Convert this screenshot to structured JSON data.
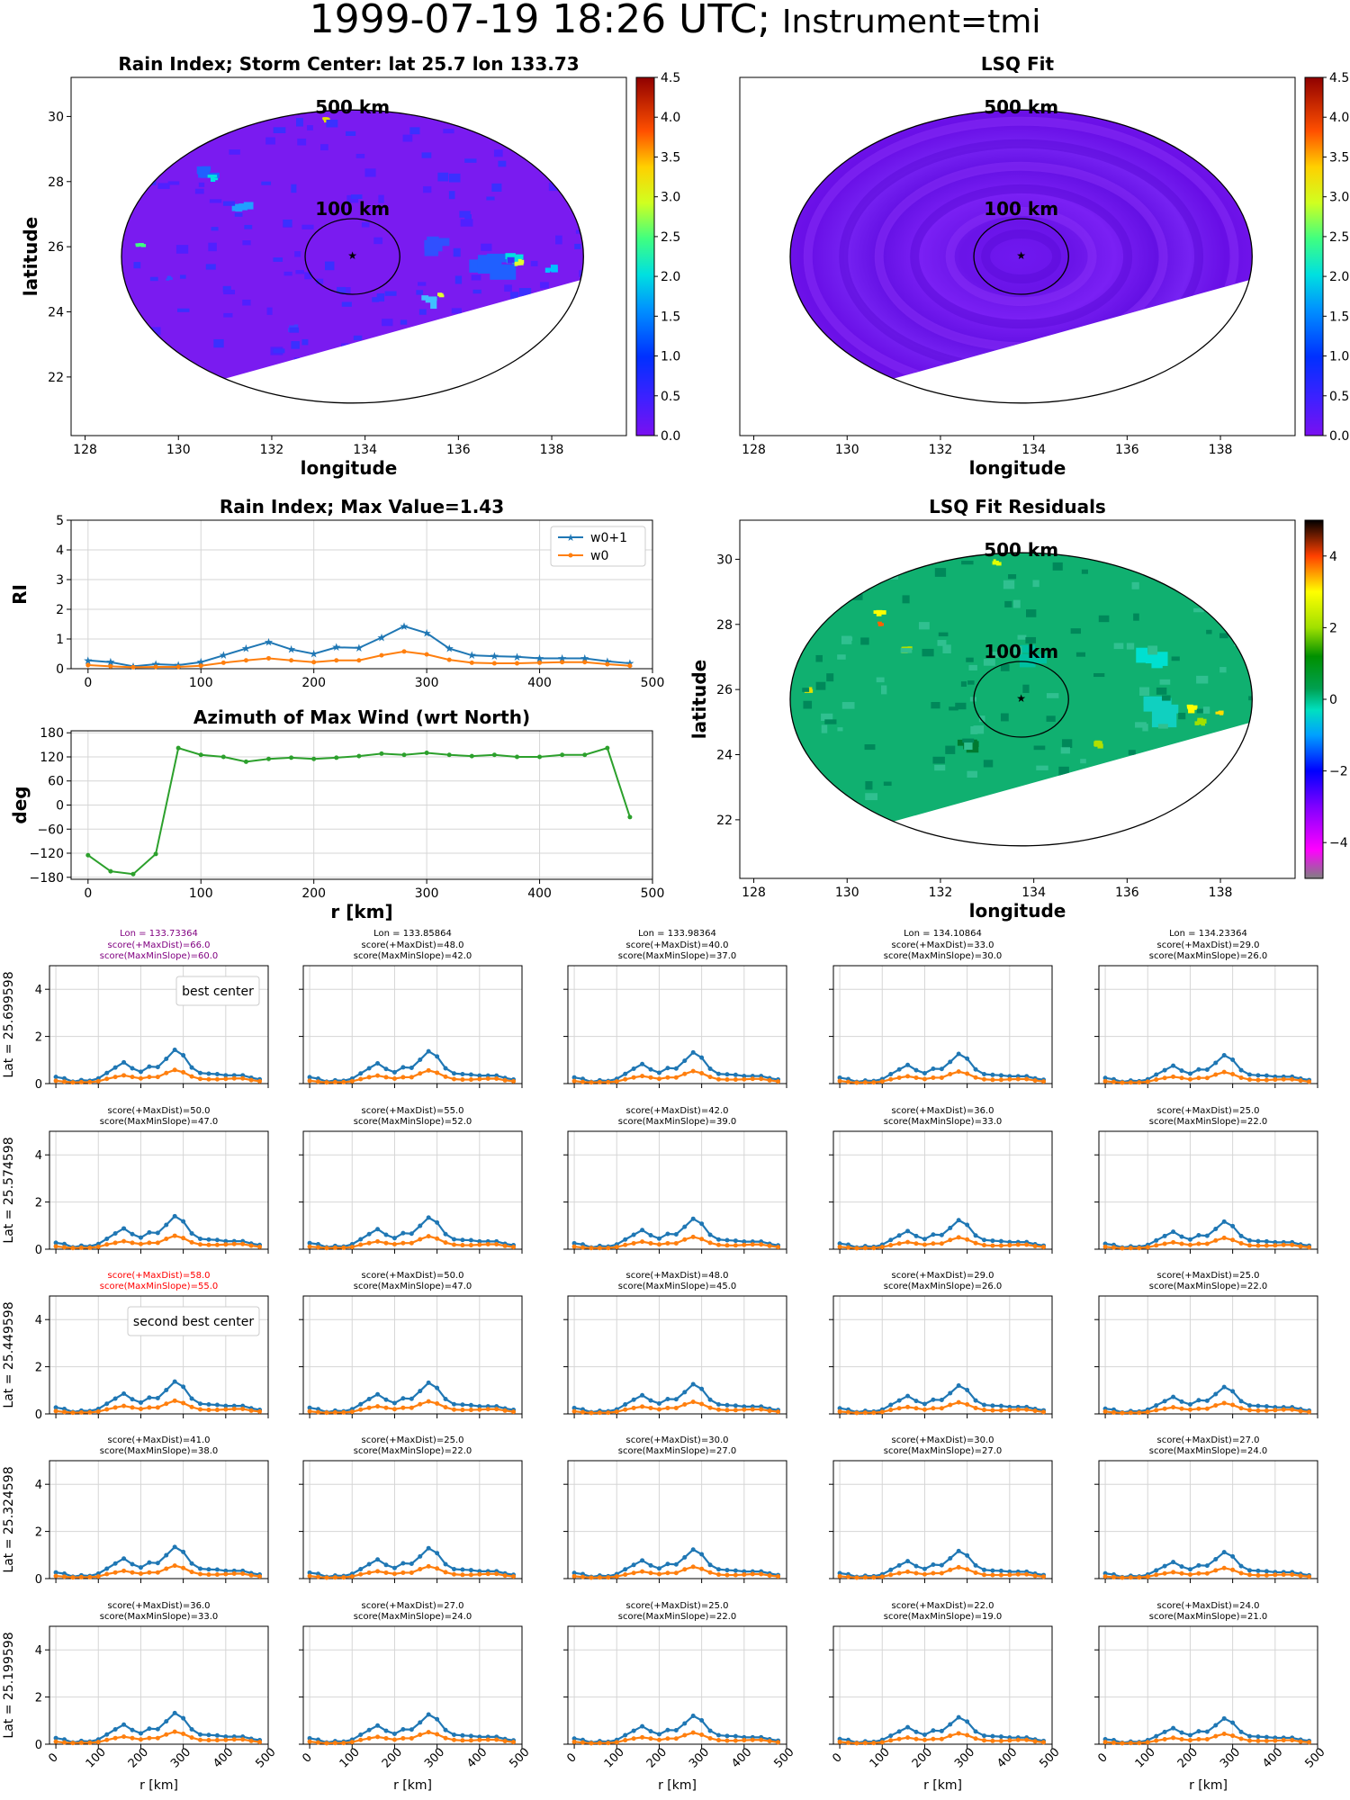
{
  "figure": {
    "title_date": "1999-07-19 18:26 UTC;",
    "title_instrument": "Instrument=tmi"
  },
  "colors": {
    "w0p1": "#1f77b4",
    "w0": "#ff7f0e",
    "azimuth": "#2ca02c",
    "best_title": "#800080",
    "second_title": "#ff0000",
    "rain_bg": "#7a1bf0",
    "resid_bg": "#10b070"
  },
  "chart_data": [
    {
      "id": "rain-index-map",
      "type": "heatmap",
      "title": "Rain Index; Storm Center: lat 25.7 lon 133.73",
      "xlabel": "longitude",
      "ylabel": "latitude",
      "xlim": [
        127.7,
        139.6
      ],
      "ylim": [
        20.2,
        31.2
      ],
      "xticks": [
        128,
        130,
        132,
        134,
        136,
        138
      ],
      "yticks": [
        22,
        24,
        26,
        28,
        30
      ],
      "center": {
        "lon": 133.73,
        "lat": 25.7
      },
      "ring_labels": [
        "500 km",
        "100 km"
      ],
      "colorbar": {
        "min": 0.0,
        "max": 4.5,
        "ticks": [
          "0.0",
          "0.5",
          "1.0",
          "1.5",
          "2.0",
          "2.5",
          "3.0",
          "3.5",
          "4.0",
          "4.5"
        ]
      }
    },
    {
      "id": "lsq-fit-map",
      "type": "heatmap",
      "title": "LSQ Fit",
      "xlabel": "longitude",
      "ylabel": "",
      "xlim": [
        127.7,
        139.6
      ],
      "ylim": [
        20.2,
        31.2
      ],
      "xticks": [
        128,
        130,
        132,
        134,
        136,
        138
      ],
      "yticks": [],
      "center": {
        "lon": 133.73,
        "lat": 25.7
      },
      "ring_labels": [
        "500 km",
        "100 km"
      ],
      "colorbar": {
        "min": 0.0,
        "max": 4.5,
        "ticks": [
          "0.0",
          "0.5",
          "1.0",
          "1.5",
          "2.0",
          "2.5",
          "3.0",
          "3.5",
          "4.0",
          "4.5"
        ]
      }
    },
    {
      "id": "rain-index-line",
      "type": "line",
      "title": "Rain Index; Max Value=1.43",
      "xlabel": "",
      "ylabel": "RI",
      "xlim": [
        -15,
        500
      ],
      "ylim": [
        0,
        5
      ],
      "xticks": [
        0,
        100,
        200,
        300,
        400,
        500
      ],
      "yticks": [
        0,
        1,
        2,
        3,
        4,
        5
      ],
      "legend": "top-right",
      "x": [
        0,
        20,
        40,
        60,
        80,
        100,
        120,
        140,
        160,
        180,
        200,
        220,
        240,
        260,
        280,
        300,
        320,
        340,
        360,
        380,
        400,
        420,
        440,
        460,
        480
      ],
      "series": [
        {
          "name": "w0+1",
          "values": [
            0.28,
            0.22,
            0.08,
            0.15,
            0.12,
            0.22,
            0.45,
            0.68,
            0.9,
            0.65,
            0.5,
            0.72,
            0.7,
            1.05,
            1.43,
            1.2,
            0.68,
            0.45,
            0.42,
            0.4,
            0.35,
            0.35,
            0.35,
            0.25,
            0.18
          ]
        },
        {
          "name": "w0",
          "values": [
            0.12,
            0.08,
            0.05,
            0.06,
            0.06,
            0.1,
            0.2,
            0.28,
            0.35,
            0.28,
            0.22,
            0.28,
            0.28,
            0.45,
            0.58,
            0.48,
            0.3,
            0.2,
            0.18,
            0.18,
            0.2,
            0.22,
            0.22,
            0.15,
            0.1
          ]
        }
      ]
    },
    {
      "id": "lsq-residuals-map",
      "type": "heatmap",
      "title": "LSQ Fit Residuals",
      "xlabel": "longitude",
      "ylabel": "latitude",
      "xlim": [
        127.7,
        139.6
      ],
      "ylim": [
        20.2,
        31.2
      ],
      "xticks": [
        128,
        130,
        132,
        134,
        136,
        138
      ],
      "yticks": [
        22,
        24,
        26,
        28,
        30
      ],
      "center": {
        "lon": 133.73,
        "lat": 25.7
      },
      "ring_labels": [
        "500 km",
        "100 km"
      ],
      "colorbar": {
        "min": -5,
        "max": 5,
        "ticks": [
          "−4",
          "−2",
          "0",
          "2",
          "4"
        ]
      }
    },
    {
      "id": "azimuth-line",
      "type": "line",
      "title": "Azimuth of Max Wind (wrt North)",
      "xlabel": "r [km]",
      "ylabel": "deg",
      "xlim": [
        -15,
        500
      ],
      "ylim": [
        -185,
        185
      ],
      "xticks": [
        0,
        100,
        200,
        300,
        400,
        500
      ],
      "yticks": [
        -180,
        -120,
        -60,
        0,
        60,
        120,
        180
      ],
      "x": [
        0,
        20,
        40,
        60,
        80,
        100,
        120,
        140,
        160,
        180,
        200,
        220,
        240,
        260,
        280,
        300,
        320,
        340,
        360,
        380,
        400,
        420,
        440,
        460,
        480
      ],
      "series": [
        {
          "values": [
            -125,
            -165,
            -172,
            -122,
            142,
            125,
            120,
            108,
            115,
            118,
            115,
            118,
            122,
            128,
            125,
            130,
            125,
            122,
            125,
            120,
            120,
            125,
            125,
            142,
            -30
          ]
        }
      ]
    },
    {
      "id": "center-grid",
      "type": "line",
      "xlabel": "r [km]",
      "xlim": [
        -15,
        500
      ],
      "ylim": [
        0,
        5
      ],
      "xticks": [
        0,
        100,
        200,
        300,
        400,
        500
      ],
      "yticks": [
        0,
        2,
        4
      ],
      "row_labels": [
        "Lat = 25.699598",
        "Lat = 25.574598",
        "Lat = 25.449598",
        "Lat = 25.324598",
        "Lat = 25.199598"
      ],
      "lons": [
        "Lon = 133.73364",
        "Lon = 133.85864",
        "Lon = 133.98364",
        "Lon = 134.10864",
        "Lon = 134.23364"
      ],
      "scores": [
        [
          [
            "score(+MaxDist)=66.0",
            "score(MaxMinSlope)=60.0"
          ],
          [
            "score(+MaxDist)=48.0",
            "score(MaxMinSlope)=42.0"
          ],
          [
            "score(+MaxDist)=40.0",
            "score(MaxMinSlope)=37.0"
          ],
          [
            "score(+MaxDist)=33.0",
            "score(MaxMinSlope)=30.0"
          ],
          [
            "score(+MaxDist)=29.0",
            "score(MaxMinSlope)=26.0"
          ]
        ],
        [
          [
            "score(+MaxDist)=50.0",
            "score(MaxMinSlope)=47.0"
          ],
          [
            "score(+MaxDist)=55.0",
            "score(MaxMinSlope)=52.0"
          ],
          [
            "score(+MaxDist)=42.0",
            "score(MaxMinSlope)=39.0"
          ],
          [
            "score(+MaxDist)=36.0",
            "score(MaxMinSlope)=33.0"
          ],
          [
            "score(+MaxDist)=25.0",
            "score(MaxMinSlope)=22.0"
          ]
        ],
        [
          [
            "score(+MaxDist)=58.0",
            "score(MaxMinSlope)=55.0"
          ],
          [
            "score(+MaxDist)=50.0",
            "score(MaxMinSlope)=47.0"
          ],
          [
            "score(+MaxDist)=48.0",
            "score(MaxMinSlope)=45.0"
          ],
          [
            "score(+MaxDist)=29.0",
            "score(MaxMinSlope)=26.0"
          ],
          [
            "score(+MaxDist)=25.0",
            "score(MaxMinSlope)=22.0"
          ]
        ],
        [
          [
            "score(+MaxDist)=41.0",
            "score(MaxMinSlope)=38.0"
          ],
          [
            "score(+MaxDist)=25.0",
            "score(MaxMinSlope)=22.0"
          ],
          [
            "score(+MaxDist)=30.0",
            "score(MaxMinSlope)=27.0"
          ],
          [
            "score(+MaxDist)=30.0",
            "score(MaxMinSlope)=27.0"
          ],
          [
            "score(+MaxDist)=27.0",
            "score(MaxMinSlope)=24.0"
          ]
        ],
        [
          [
            "score(+MaxDist)=36.0",
            "score(MaxMinSlope)=33.0"
          ],
          [
            "score(+MaxDist)=27.0",
            "score(MaxMinSlope)=24.0"
          ],
          [
            "score(+MaxDist)=25.0",
            "score(MaxMinSlope)=22.0"
          ],
          [
            "score(+MaxDist)=22.0",
            "score(MaxMinSlope)=19.0"
          ],
          [
            "score(+MaxDist)=24.0",
            "score(MaxMinSlope)=21.0"
          ]
        ]
      ],
      "annotations": [
        {
          "row": 0,
          "col": 0,
          "text": "best center"
        },
        {
          "row": 2,
          "col": 0,
          "text": "second best center"
        }
      ]
    }
  ]
}
